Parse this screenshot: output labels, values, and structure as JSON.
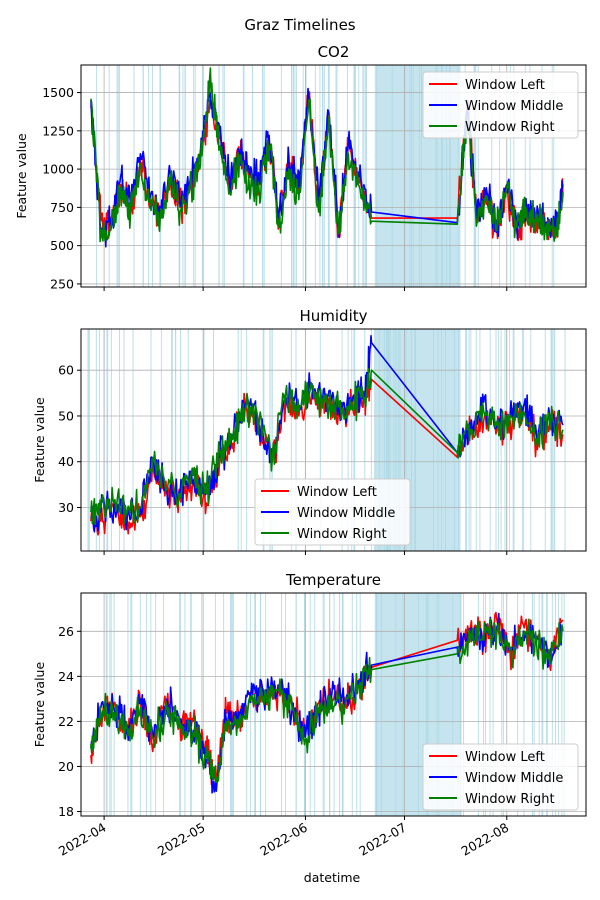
{
  "chart_data": {
    "type": "line",
    "title": "Graz Timelines",
    "xlabel": "datetime",
    "x_tick_labels": [
      "2022-04",
      "2022-05",
      "2022-06",
      "2022-07",
      "2022-08"
    ],
    "x_tick_dates": [
      "2022-04-01",
      "2022-05-01",
      "2022-06-01",
      "2022-07-01",
      "2022-08-01"
    ],
    "x_range": [
      "2022-03-25",
      "2022-08-25"
    ],
    "grid": true,
    "series_names": [
      "Window Left",
      "Window Middle",
      "Window Right"
    ],
    "series_colors": {
      "Window Left": "#ff0000",
      "Window Middle": "#0000ff",
      "Window Right": "#008000"
    },
    "shaded_interval": [
      "2022-06-22",
      "2022-07-18"
    ],
    "panels": [
      {
        "title": "CO2",
        "ylabel": "Feature value",
        "ylim": [
          230,
          1680
        ],
        "yticks": [
          250,
          500,
          750,
          1000,
          1250,
          1500
        ],
        "legend": "top-right",
        "x": [
          "2022-03-28",
          "2022-03-31",
          "2022-04-03",
          "2022-04-06",
          "2022-04-09",
          "2022-04-12",
          "2022-04-15",
          "2022-04-18",
          "2022-04-21",
          "2022-04-24",
          "2022-04-27",
          "2022-04-30",
          "2022-05-03",
          "2022-05-06",
          "2022-05-09",
          "2022-05-12",
          "2022-05-15",
          "2022-05-18",
          "2022-05-21",
          "2022-05-24",
          "2022-05-27",
          "2022-05-30",
          "2022-06-02",
          "2022-06-05",
          "2022-06-08",
          "2022-06-11",
          "2022-06-14",
          "2022-06-17",
          "2022-06-21",
          "2022-07-17",
          "2022-07-20",
          "2022-07-23",
          "2022-07-26",
          "2022-07-29",
          "2022-08-01",
          "2022-08-04",
          "2022-08-07",
          "2022-08-10",
          "2022-08-13",
          "2022-08-16",
          "2022-08-18"
        ],
        "series": [
          {
            "name": "Window Left",
            "values": [
              1400,
              680,
              620,
              900,
              750,
              1050,
              800,
              700,
              950,
              750,
              900,
              1050,
              1450,
              1200,
              900,
              1100,
              950,
              900,
              1200,
              650,
              1050,
              850,
              1500,
              750,
              1350,
              600,
              1150,
              950,
              680,
              680,
              1400,
              700,
              800,
              600,
              850,
              600,
              700,
              650,
              620,
              600,
              820
            ]
          },
          {
            "name": "Window Middle",
            "values": [
              1450,
              600,
              650,
              950,
              780,
              1100,
              820,
              720,
              980,
              780,
              920,
              1080,
              1500,
              1250,
              920,
              1120,
              980,
              920,
              1220,
              680,
              1080,
              880,
              1480,
              780,
              1380,
              620,
              1180,
              980,
              720,
              650,
              1380,
              680,
              850,
              620,
              900,
              650,
              750,
              680,
              650,
              620,
              900
            ]
          },
          {
            "name": "Window Right",
            "values": [
              1460,
              560,
              600,
              880,
              700,
              1000,
              780,
              680,
              900,
              720,
              880,
              1000,
              1600,
              1150,
              850,
              1050,
              900,
              850,
              1150,
              620,
              1000,
              800,
              1450,
              720,
              1300,
              580,
              1100,
              900,
              660,
              640,
              1350,
              660,
              820,
              600,
              880,
              620,
              730,
              660,
              640,
              610,
              850
            ]
          }
        ]
      },
      {
        "title": "Humidity",
        "ylabel": "Feature value",
        "ylim": [
          20.5,
          69
        ],
        "yticks": [
          30,
          40,
          50,
          60
        ],
        "legend": "lower-center",
        "x": [
          "2022-03-28",
          "2022-03-31",
          "2022-04-04",
          "2022-04-08",
          "2022-04-12",
          "2022-04-16",
          "2022-04-20",
          "2022-04-24",
          "2022-04-28",
          "2022-05-02",
          "2022-05-06",
          "2022-05-10",
          "2022-05-14",
          "2022-05-18",
          "2022-05-22",
          "2022-05-26",
          "2022-05-30",
          "2022-06-03",
          "2022-06-07",
          "2022-06-11",
          "2022-06-15",
          "2022-06-19",
          "2022-06-21",
          "2022-07-17",
          "2022-07-21",
          "2022-07-25",
          "2022-07-29",
          "2022-08-02",
          "2022-08-06",
          "2022-08-10",
          "2022-08-14",
          "2022-08-18"
        ],
        "series": [
          {
            "name": "Window Left",
            "values": [
              27,
              27,
              30,
              27,
              28,
              38,
              33,
              32,
              35,
              31,
              40,
              44,
              52,
              47,
              40,
              53,
              50,
              55,
              52,
              51,
              52,
              54,
              58,
              41,
              46,
              49,
              47,
              49,
              51,
              45,
              48,
              46
            ]
          },
          {
            "name": "Window Middle",
            "values": [
              28,
              29,
              31,
              28,
              30,
              40,
              34,
              33,
              36,
              33,
              41,
              45,
              53,
              48,
              41,
              54,
              52,
              57,
              54,
              52,
              53,
              55,
              66,
              42,
              47,
              53,
              48,
              50,
              52,
              46,
              50,
              48
            ]
          },
          {
            "name": "Window Right",
            "values": [
              29,
              30,
              31,
              29,
              30,
              40,
              34,
              33,
              37,
              33,
              42,
              45,
              52,
              49,
              41,
              55,
              51,
              56,
              53,
              52,
              53,
              54,
              60,
              42,
              47,
              51,
              48,
              50,
              51,
              45,
              49,
              47
            ]
          }
        ]
      },
      {
        "title": "Temperature",
        "ylabel": "Feature value",
        "ylim": [
          17.8,
          27.7
        ],
        "yticks": [
          18,
          20,
          22,
          24,
          26
        ],
        "legend": "lower-right",
        "x": [
          "2022-03-28",
          "2022-03-31",
          "2022-04-04",
          "2022-04-08",
          "2022-04-12",
          "2022-04-16",
          "2022-04-20",
          "2022-04-24",
          "2022-04-28",
          "2022-05-02",
          "2022-05-05",
          "2022-05-08",
          "2022-05-12",
          "2022-05-16",
          "2022-05-20",
          "2022-05-24",
          "2022-05-28",
          "2022-06-01",
          "2022-06-05",
          "2022-06-09",
          "2022-06-13",
          "2022-06-17",
          "2022-06-21",
          "2022-07-17",
          "2022-07-21",
          "2022-07-25",
          "2022-07-29",
          "2022-08-02",
          "2022-08-06",
          "2022-08-10",
          "2022-08-14",
          "2022-08-18"
        ],
        "series": [
          {
            "name": "Window Left",
            "values": [
              20.5,
              22.3,
              22.8,
              21.5,
              22.8,
              21.0,
              22.8,
              21.8,
              22.0,
              20.5,
              19.5,
              22.4,
              22.4,
              23.0,
              23.2,
              23.4,
              22.8,
              21.5,
              22.8,
              23.0,
              22.8,
              23.5,
              24.4,
              25.6,
              26.2,
              25.6,
              26.5,
              25.0,
              26.3,
              25.5,
              24.5,
              26.5
            ]
          },
          {
            "name": "Window Middle",
            "values": [
              20.8,
              22.6,
              22.6,
              21.8,
              23.0,
              21.3,
              23.0,
              22.0,
              21.6,
              20.3,
              18.9,
              22.1,
              22.2,
              23.2,
              23.4,
              23.6,
              22.6,
              21.3,
              22.6,
              23.2,
              22.9,
              23.8,
              24.5,
              25.3,
              25.9,
              25.8,
              26.2,
              25.2,
              26.0,
              25.7,
              24.8,
              26.2
            ]
          },
          {
            "name": "Window Right",
            "values": [
              21.0,
              22.4,
              22.4,
              21.6,
              22.6,
              21.2,
              22.7,
              21.7,
              21.5,
              20.4,
              19.3,
              22.0,
              22.1,
              23.0,
              23.1,
              23.4,
              22.5,
              21.2,
              22.4,
              23.0,
              22.7,
              23.6,
              24.3,
              25.0,
              25.8,
              25.6,
              26.0,
              25.1,
              25.9,
              25.5,
              24.6,
              26.0
            ]
          }
        ]
      }
    ]
  }
}
